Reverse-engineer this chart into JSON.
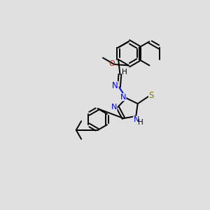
{
  "background_color": "#e0e0e0",
  "bond_color": "#000000",
  "N_color": "#0000ff",
  "O_color": "#ff0000",
  "S_color": "#808000",
  "line_width": 1.4,
  "figsize": [
    3.0,
    3.0
  ],
  "dpi": 100,
  "xlim": [
    0,
    10
  ],
  "ylim": [
    0,
    10
  ]
}
